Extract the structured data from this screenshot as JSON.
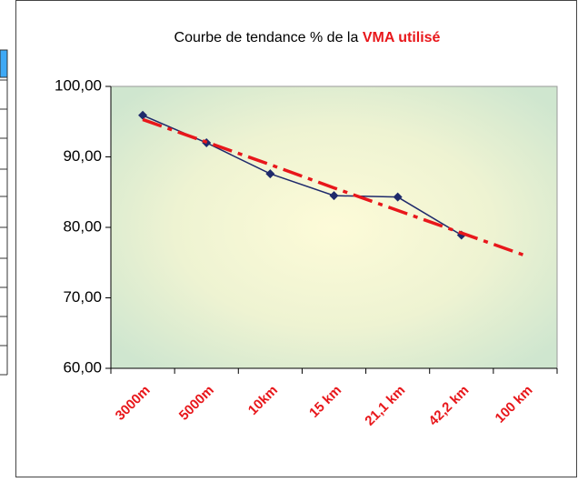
{
  "chart_data": {
    "type": "line",
    "title": {
      "text": "Courbe de tendance % de la",
      "highlight": "VMA utilisé"
    },
    "categories": [
      "3000m",
      "5000m",
      "10km",
      "15 km",
      "21,1 km",
      "42,2 km",
      "100 km"
    ],
    "series": [
      {
        "color": "#1f2a6b",
        "values": [
          95.9,
          92.0,
          87.6,
          84.5,
          84.3,
          78.9,
          null
        ],
        "marker": "diamond"
      },
      {
        "color": "#e8171b",
        "values": [
          95.3,
          92.1,
          88.9,
          85.6,
          82.4,
          79.2,
          76.0
        ],
        "line_style": "dash-dot"
      }
    ],
    "ylim": [
      60,
      100
    ],
    "yticks": [
      {
        "value": 60,
        "label": "60,00"
      },
      {
        "value": 70,
        "label": "70,00"
      },
      {
        "value": 80,
        "label": "80,00"
      },
      {
        "value": 90,
        "label": "90,00"
      },
      {
        "value": 100,
        "label": "100,00"
      }
    ],
    "grid": false
  }
}
